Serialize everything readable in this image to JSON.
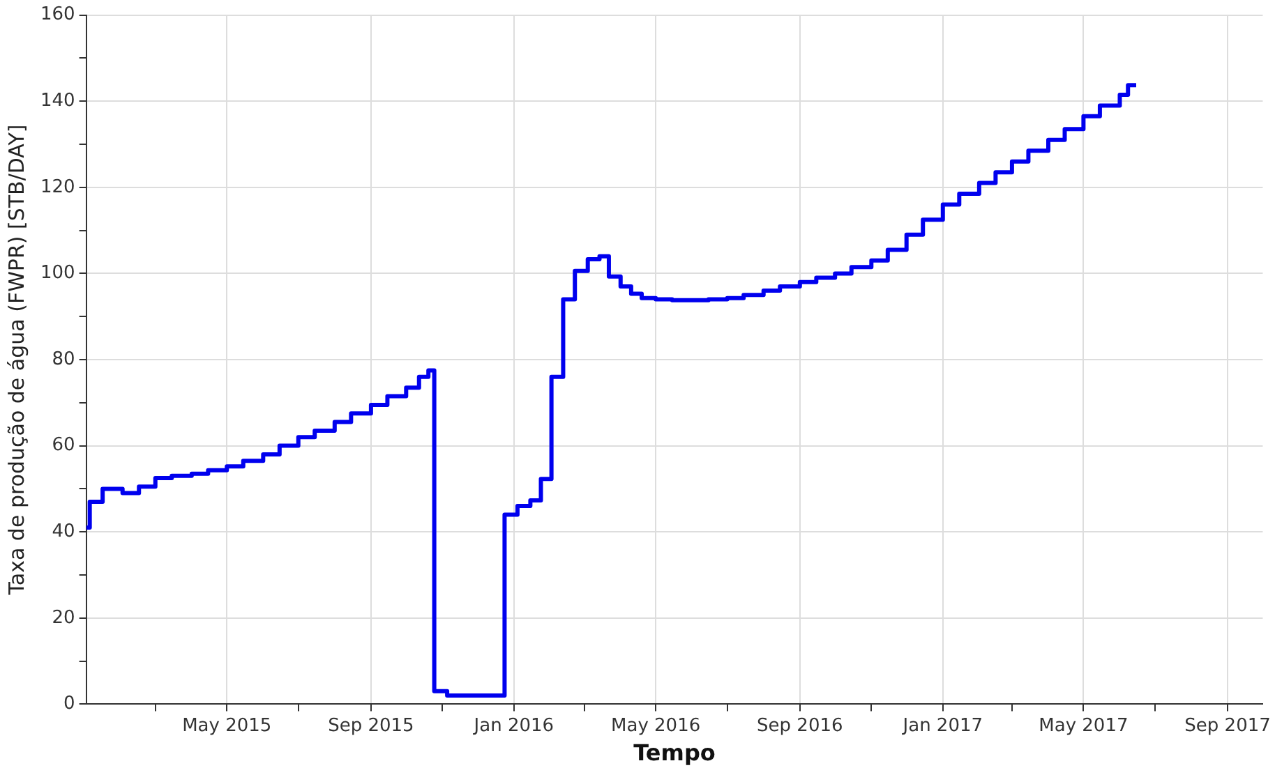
{
  "chart_data": {
    "type": "step",
    "xlabel": "Tempo",
    "ylabel": "Taxa de produção de água (FWPR) [STB/DAY]",
    "x": [
      "2015-01-01",
      "2015-01-04",
      "2015-01-15",
      "2015-02-01",
      "2015-02-15",
      "2015-03-01",
      "2015-03-15",
      "2015-04-01",
      "2015-04-15",
      "2015-05-01",
      "2015-05-15",
      "2015-06-01",
      "2015-06-15",
      "2015-07-01",
      "2015-07-15",
      "2015-08-01",
      "2015-08-15",
      "2015-09-01",
      "2015-09-15",
      "2015-10-01",
      "2015-10-12",
      "2015-10-20",
      "2015-10-25",
      "2015-11-05",
      "2015-12-24",
      "2016-01-04",
      "2016-01-15",
      "2016-01-24",
      "2016-02-02",
      "2016-02-12",
      "2016-02-22",
      "2016-03-04",
      "2016-03-14",
      "2016-03-22",
      "2016-04-01",
      "2016-04-10",
      "2016-04-19",
      "2016-05-01",
      "2016-05-15",
      "2016-06-01",
      "2016-06-15",
      "2016-07-01",
      "2016-07-15",
      "2016-08-01",
      "2016-08-15",
      "2016-09-01",
      "2016-09-15",
      "2016-10-01",
      "2016-10-15",
      "2016-11-01",
      "2016-11-15",
      "2016-12-01",
      "2016-12-15",
      "2017-01-01",
      "2017-01-15",
      "2017-02-01",
      "2017-02-15",
      "2017-03-01",
      "2017-03-15",
      "2017-04-01",
      "2017-04-15",
      "2017-05-01",
      "2017-05-15",
      "2017-06-01",
      "2017-06-08",
      "2017-06-15"
    ],
    "values": [
      41,
      47,
      50,
      49,
      50.5,
      52.5,
      53,
      53.5,
      54.3,
      55.2,
      56.5,
      58,
      60,
      62,
      63.5,
      65.5,
      67.5,
      69.5,
      71.5,
      73.5,
      76,
      77.5,
      3,
      2,
      44,
      46,
      47.3,
      52.3,
      76,
      94,
      100.6,
      103.3,
      104,
      99.3,
      97,
      95.3,
      94.3,
      94,
      93.8,
      93.8,
      94,
      94.3,
      95,
      96,
      97,
      98,
      99,
      100,
      101.5,
      103,
      105.5,
      109,
      112.5,
      116,
      118.5,
      121,
      123.5,
      126,
      128.5,
      131,
      133.5,
      136.5,
      139,
      141.5,
      143.7,
      143.7
    ],
    "color": "#0000ee",
    "xlim": [
      "2015-01-01",
      "2017-10-01"
    ],
    "xticks": [
      {
        "value": "2015-03-01",
        "label": null
      },
      {
        "value": "2015-05-01",
        "label": "May 2015"
      },
      {
        "value": "2015-07-01",
        "label": null
      },
      {
        "value": "2015-09-01",
        "label": "Sep 2015"
      },
      {
        "value": "2015-11-01",
        "label": null
      },
      {
        "value": "2016-01-01",
        "label": "Jan 2016"
      },
      {
        "value": "2016-03-01",
        "label": null
      },
      {
        "value": "2016-05-01",
        "label": "May 2016"
      },
      {
        "value": "2016-07-01",
        "label": null
      },
      {
        "value": "2016-09-01",
        "label": "Sep 2016"
      },
      {
        "value": "2016-11-01",
        "label": null
      },
      {
        "value": "2017-01-01",
        "label": "Jan 2017"
      },
      {
        "value": "2017-03-01",
        "label": null
      },
      {
        "value": "2017-05-01",
        "label": "May 2017"
      },
      {
        "value": "2017-07-01",
        "label": null
      },
      {
        "value": "2017-09-01",
        "label": "Sep 2017"
      }
    ],
    "ylim": [
      0,
      160
    ],
    "yticks": [
      0,
      {
        "value": 10,
        "label": null
      },
      20,
      {
        "value": 30,
        "label": null
      },
      40,
      {
        "value": 50,
        "label": null
      },
      60,
      {
        "value": 70,
        "label": null
      },
      80,
      {
        "value": 90,
        "label": null
      },
      100,
      {
        "value": 110,
        "label": null
      },
      120,
      {
        "value": 130,
        "label": null
      },
      140,
      {
        "value": 150,
        "label": null
      },
      160
    ],
    "grid": true,
    "legend": false
  }
}
